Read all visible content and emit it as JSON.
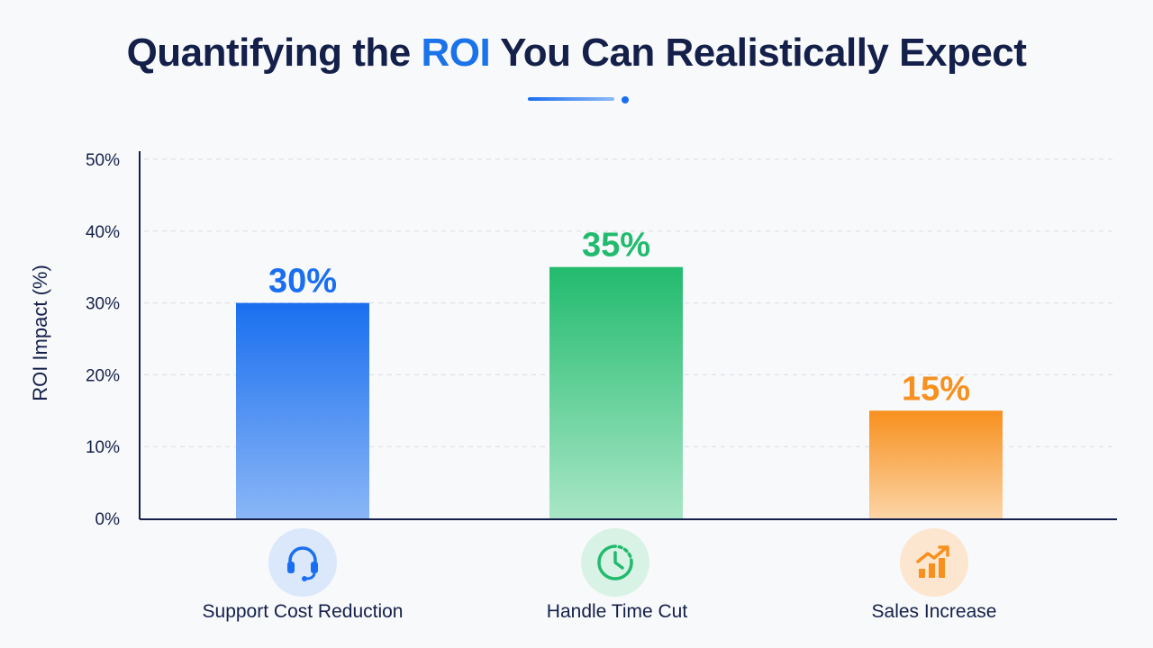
{
  "header": {
    "title_before": "Quantifying the ",
    "title_accent": "ROI",
    "title_after": " You Can Realistically Expect"
  },
  "colors": {
    "title": "#14204a",
    "accent": "#1a73e8",
    "support": "#1a6ff0",
    "handle": "#22bb6e",
    "sales": "#f7901e"
  },
  "chart_data": {
    "type": "bar",
    "categories": [
      "Support Cost Reduction",
      "Handle Time Cut",
      "Sales Increase"
    ],
    "values": [
      30,
      35,
      15
    ],
    "data_labels": [
      "30%",
      "35%",
      "15%"
    ],
    "ylabel": "ROI Impact (%)",
    "ylim": [
      0,
      50
    ],
    "yticks": [
      0,
      10,
      20,
      30,
      40,
      50
    ],
    "ytick_labels": [
      "0%",
      "10%",
      "20%",
      "30%",
      "40%",
      "50%"
    ],
    "grid": true,
    "bar_colors": [
      "#1a6ff0",
      "#22bb6e",
      "#f7901e"
    ],
    "icons": [
      "headset-icon",
      "clock-icon",
      "growth-chart-icon"
    ]
  }
}
